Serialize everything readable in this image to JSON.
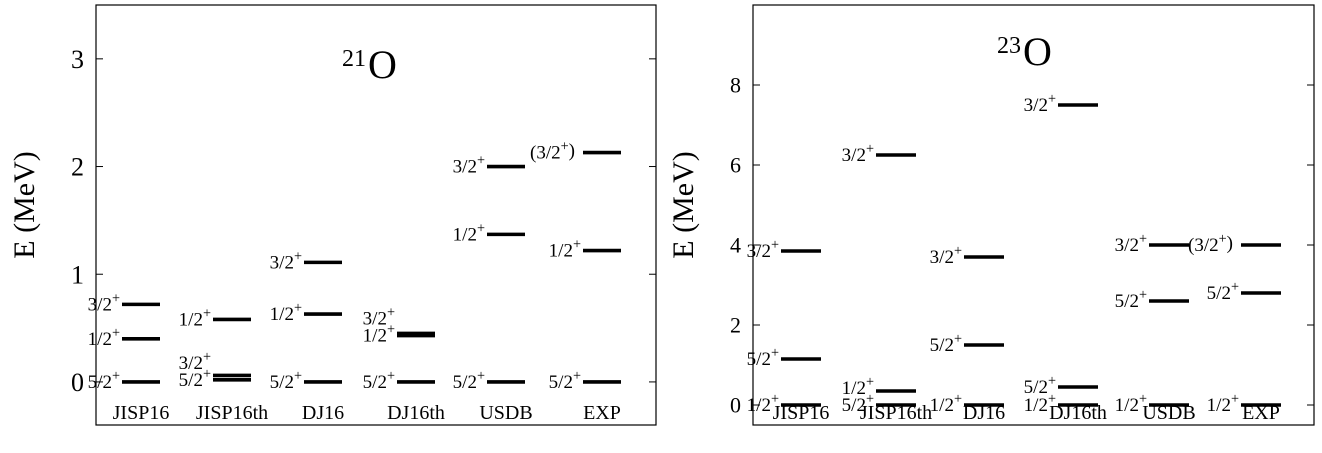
{
  "chart_data": [
    {
      "type": "scatter",
      "title_mass": "21",
      "title_element": "O",
      "ylabel": "E (MeV)",
      "ylim": [
        -0.4,
        3.5
      ],
      "yticks": [
        "0",
        "1",
        "2",
        "3"
      ],
      "ytick_values": [
        0,
        1,
        2,
        3
      ],
      "categories": [
        "JISP16",
        "JISP16th",
        "DJ16",
        "DJ16th",
        "USDB",
        "EXP"
      ],
      "grid": false,
      "levels": [
        {
          "category": "JISP16",
          "energy": 0.0,
          "label": "5/2",
          "parity": "+"
        },
        {
          "category": "JISP16",
          "energy": 0.4,
          "label": "1/2",
          "parity": "+"
        },
        {
          "category": "JISP16",
          "energy": 0.72,
          "label": "3/2",
          "parity": "+"
        },
        {
          "category": "JISP16th",
          "energy": 0.02,
          "label": "5/2",
          "parity": "+"
        },
        {
          "category": "JISP16th",
          "energy": 0.06,
          "label": "3/2",
          "parity": "+"
        },
        {
          "category": "JISP16th",
          "energy": 0.58,
          "label": "1/2",
          "parity": "+"
        },
        {
          "category": "DJ16",
          "energy": 0.0,
          "label": "5/2",
          "parity": "+"
        },
        {
          "category": "DJ16",
          "energy": 0.63,
          "label": "1/2",
          "parity": "+"
        },
        {
          "category": "DJ16",
          "energy": 1.11,
          "label": "3/2",
          "parity": "+"
        },
        {
          "category": "DJ16th",
          "energy": 0.0,
          "label": "5/2",
          "parity": "+"
        },
        {
          "category": "DJ16th",
          "energy": 0.43,
          "label": "1/2",
          "parity": "+"
        },
        {
          "category": "DJ16th",
          "energy": 0.45,
          "label": "3/2",
          "parity": "+"
        },
        {
          "category": "USDB",
          "energy": 0.0,
          "label": "5/2",
          "parity": "+"
        },
        {
          "category": "USDB",
          "energy": 1.37,
          "label": "1/2",
          "parity": "+"
        },
        {
          "category": "USDB",
          "energy": 2.0,
          "label": "3/2",
          "parity": "+"
        },
        {
          "category": "EXP",
          "energy": 0.0,
          "label": "5/2",
          "parity": "+"
        },
        {
          "category": "EXP",
          "energy": 1.22,
          "label": "1/2",
          "parity": "+"
        },
        {
          "category": "EXP",
          "energy": 2.13,
          "label": "(3/2",
          "parity": "+",
          "suffix": ")"
        }
      ]
    },
    {
      "type": "scatter",
      "title_mass": "23",
      "title_element": "O",
      "ylabel": "E (MeV)",
      "ylim": [
        -0.5,
        10.0
      ],
      "yticks": [
        "0",
        "2",
        "4",
        "6",
        "8"
      ],
      "ytick_values": [
        0,
        2,
        4,
        6,
        8
      ],
      "categories": [
        "JISP16",
        "JISP16th",
        "DJ16",
        "DJ16th",
        "USDB",
        "EXP"
      ],
      "grid": false,
      "levels": [
        {
          "category": "JISP16",
          "energy": 0.0,
          "label": "1/2",
          "parity": "+"
        },
        {
          "category": "JISP16",
          "energy": 1.15,
          "label": "5/2",
          "parity": "+"
        },
        {
          "category": "JISP16",
          "energy": 3.85,
          "label": "3/2",
          "parity": "+"
        },
        {
          "category": "JISP16th",
          "energy": 0.0,
          "label": "5/2",
          "parity": "+"
        },
        {
          "category": "JISP16th",
          "energy": 0.35,
          "label": "1/2",
          "parity": "+"
        },
        {
          "category": "JISP16th",
          "energy": 6.25,
          "label": "3/2",
          "parity": "+"
        },
        {
          "category": "DJ16",
          "energy": 0.0,
          "label": "1/2",
          "parity": "+"
        },
        {
          "category": "DJ16",
          "energy": 1.5,
          "label": "5/2",
          "parity": "+"
        },
        {
          "category": "DJ16",
          "energy": 3.7,
          "label": "3/2",
          "parity": "+"
        },
        {
          "category": "DJ16th",
          "energy": 0.0,
          "label": "1/2",
          "parity": "+"
        },
        {
          "category": "DJ16th",
          "energy": 0.45,
          "label": "5/2",
          "parity": "+"
        },
        {
          "category": "DJ16th",
          "energy": 7.5,
          "label": "3/2",
          "parity": "+"
        },
        {
          "category": "USDB",
          "energy": 0.0,
          "label": "1/2",
          "parity": "+"
        },
        {
          "category": "USDB",
          "energy": 2.6,
          "label": "5/2",
          "parity": "+"
        },
        {
          "category": "USDB",
          "energy": 4.0,
          "label": "3/2",
          "parity": "+"
        },
        {
          "category": "EXP",
          "energy": 0.0,
          "label": "1/2",
          "parity": "+"
        },
        {
          "category": "EXP",
          "energy": 2.8,
          "label": "5/2",
          "parity": "+"
        },
        {
          "category": "EXP",
          "energy": 4.0,
          "label": "(3/2",
          "parity": "+",
          "suffix": ")"
        }
      ]
    }
  ]
}
